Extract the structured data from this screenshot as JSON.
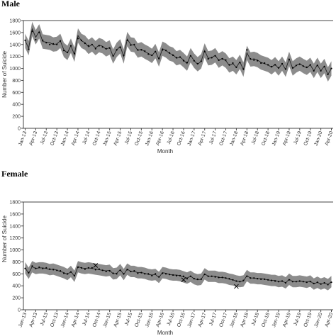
{
  "chart_data": [
    {
      "type": "line",
      "title": "Male",
      "xlabel": "Month",
      "ylabel": "Number of Suicide",
      "ylim": [
        0,
        1800
      ],
      "yticks": [
        0,
        200,
        400,
        600,
        800,
        1000,
        1200,
        1400,
        1600,
        1800
      ],
      "x": [
        "Jan-13",
        "Feb-13",
        "Mar-13",
        "Apr-13",
        "May-13",
        "Jun-13",
        "Jul-13",
        "Aug-13",
        "Sep-13",
        "Oct-13",
        "Nov-13",
        "Dec-13",
        "Jan-14",
        "Feb-14",
        "Mar-14",
        "Apr-14",
        "May-14",
        "Jun-14",
        "Jul-14",
        "Aug-14",
        "Sep-14",
        "Oct-14",
        "Nov-14",
        "Dec-14",
        "Jan-15",
        "Feb-15",
        "Mar-15",
        "Apr-15",
        "May-15",
        "Jun-15",
        "Jul-15",
        "Aug-15",
        "Sep-15",
        "Oct-15",
        "Nov-15",
        "Dec-15",
        "Jan-16",
        "Feb-16",
        "Mar-16",
        "Apr-16",
        "May-16",
        "Jun-16",
        "Jul-16",
        "Aug-16",
        "Sep-16",
        "Oct-16",
        "Nov-16",
        "Dec-16",
        "Jan-17",
        "Feb-17",
        "Mar-17",
        "Apr-17",
        "May-17",
        "Jun-17",
        "Jul-17",
        "Aug-17",
        "Sep-17",
        "Oct-17",
        "Nov-17",
        "Dec-17",
        "Jan-18",
        "Feb-18",
        "Mar-18",
        "Apr-18",
        "May-18",
        "Jun-18",
        "Jul-18",
        "Aug-18",
        "Sep-18",
        "Oct-18",
        "Nov-18",
        "Dec-18",
        "Jan-19",
        "Feb-19",
        "Mar-19",
        "Apr-19",
        "May-19",
        "Jun-19",
        "Jul-19",
        "Aug-19",
        "Sep-19",
        "Oct-19",
        "Nov-19",
        "Dec-19",
        "Jan-20",
        "Feb-20",
        "Mar-20",
        "Apr-20"
      ],
      "xtick_labels": [
        "Jan-13",
        "Apr-13",
        "Jul-13",
        "Oct-13",
        "Jan-14",
        "Apr-14",
        "Jul-14",
        "Oct-14",
        "Jan-15",
        "Apr-15",
        "Jul-15",
        "Oct-15",
        "Jan-16",
        "Apr-16",
        "Jul-16",
        "Oct-16",
        "Jan-17",
        "Apr-17",
        "Jul-17",
        "Oct-17",
        "Jan-18",
        "Apr-18",
        "Jul-18",
        "Oct-18",
        "Jan-19",
        "Apr-19",
        "Jul-19",
        "Oct-19",
        "Jan-20",
        "Apr-20"
      ],
      "band_half_width": 120,
      "fitted": [
        1460,
        1340,
        1660,
        1520,
        1620,
        1450,
        1440,
        1430,
        1400,
        1410,
        1460,
        1310,
        1260,
        1380,
        1230,
        1550,
        1460,
        1430,
        1360,
        1400,
        1340,
        1390,
        1370,
        1320,
        1350,
        1200,
        1310,
        1370,
        1200,
        1490,
        1400,
        1390,
        1300,
        1320,
        1280,
        1250,
        1210,
        1290,
        1150,
        1330,
        1300,
        1250,
        1230,
        1170,
        1190,
        1140,
        1080,
        1220,
        1130,
        1070,
        1120,
        1300,
        1170,
        1180,
        1220,
        1130,
        1170,
        1130,
        1050,
        1080,
        1020,
        1110,
        980,
        1260,
        1150,
        1160,
        1140,
        1100,
        1080,
        1060,
        1020,
        1070,
        1000,
        1080,
        980,
        1160,
        1000,
        1050,
        1080,
        1040,
        1010,
        1060,
        960,
        1060,
        960,
        1040,
        900,
        1000
      ],
      "observed": [
        1470,
        1320,
        1620,
        1480,
        1600,
        1470,
        1430,
        1400,
        1410,
        1400,
        1460,
        1300,
        1270,
        1380,
        1250,
        1500,
        1470,
        1420,
        1380,
        1400,
        1330,
        1380,
        1360,
        1330,
        1340,
        1210,
        1310,
        1350,
        1220,
        1470,
        1390,
        1400,
        1310,
        1310,
        1290,
        1240,
        1220,
        1280,
        1170,
        1310,
        1300,
        1260,
        1220,
        1180,
        1190,
        1130,
        1100,
        1210,
        1130,
        1080,
        1120,
        1280,
        1160,
        1180,
        1210,
        1140,
        1160,
        1140,
        1060,
        1090,
        1020,
        1100,
        990,
        1310,
        1160,
        1140,
        1130,
        1090,
        1090,
        1060,
        1030,
        1060,
        1010,
        1080,
        990,
        1150,
        1010,
        1050,
        1070,
        1040,
        1020,
        1060,
        960,
        1050,
        960,
        1030,
        900,
        1000
      ],
      "line_color": "#222222",
      "band_color": "#8c8c8c"
    },
    {
      "type": "line",
      "title": "Female",
      "xlabel": "Month",
      "ylabel": "Number of Suicide",
      "ylim": [
        0,
        1800
      ],
      "yticks": [
        0,
        200,
        400,
        600,
        800,
        1000,
        1200,
        1400,
        1600,
        1800
      ],
      "x": [
        "Jan-13",
        "Feb-13",
        "Mar-13",
        "Apr-13",
        "May-13",
        "Jun-13",
        "Jul-13",
        "Aug-13",
        "Sep-13",
        "Oct-13",
        "Nov-13",
        "Dec-13",
        "Jan-14",
        "Feb-14",
        "Mar-14",
        "Apr-14",
        "May-14",
        "Jun-14",
        "Jul-14",
        "Aug-14",
        "Sep-14",
        "Oct-14",
        "Nov-14",
        "Dec-14",
        "Jan-15",
        "Feb-15",
        "Mar-15",
        "Apr-15",
        "May-15",
        "Jun-15",
        "Jul-15",
        "Aug-15",
        "Sep-15",
        "Oct-15",
        "Nov-15",
        "Dec-15",
        "Jan-16",
        "Feb-16",
        "Mar-16",
        "Apr-16",
        "May-16",
        "Jun-16",
        "Jul-16",
        "Aug-16",
        "Sep-16",
        "Oct-16",
        "Nov-16",
        "Dec-16",
        "Jan-17",
        "Feb-17",
        "Mar-17",
        "Apr-17",
        "May-17",
        "Jun-17",
        "Jul-17",
        "Aug-17",
        "Sep-17",
        "Oct-17",
        "Nov-17",
        "Dec-17",
        "Jan-18",
        "Feb-18",
        "Mar-18",
        "Apr-18",
        "May-18",
        "Jun-18",
        "Jul-18",
        "Aug-18",
        "Sep-18",
        "Oct-18",
        "Nov-18",
        "Dec-18",
        "Jan-19",
        "Feb-19",
        "Mar-19",
        "Apr-19",
        "May-19",
        "Jun-19",
        "Jul-19",
        "Aug-19",
        "Sep-19",
        "Oct-19",
        "Nov-19",
        "Dec-19",
        "Jan-20",
        "Feb-20",
        "Mar-20",
        "Apr-20"
      ],
      "xtick_labels": [
        "Jan-13",
        "Apr-13",
        "Jul-13",
        "Oct-13",
        "Jan-14",
        "Apr-14",
        "Jul-14",
        "Oct-14",
        "Jan-15",
        "Apr-15",
        "Jul-15",
        "Oct-15",
        "Jan-16",
        "Apr-16",
        "Jul-16",
        "Oct-16",
        "Jan-17",
        "Apr-17",
        "Jul-17",
        "Oct-17",
        "Jan-18",
        "Apr-18",
        "Jul-18",
        "Oct-18",
        "Jan-19",
        "Apr-19",
        "Jul-19",
        "Oct-19",
        "Jan-20",
        "Apr-20"
      ],
      "band_half_width": 95,
      "fitted": [
        700,
        610,
        720,
        690,
        700,
        700,
        690,
        670,
        680,
        660,
        640,
        620,
        590,
        640,
        560,
        720,
        700,
        690,
        700,
        690,
        680,
        670,
        660,
        650,
        660,
        600,
        610,
        670,
        590,
        680,
        640,
        640,
        620,
        620,
        610,
        590,
        580,
        590,
        540,
        620,
        610,
        590,
        580,
        580,
        570,
        550,
        530,
        560,
        520,
        500,
        510,
        600,
        560,
        560,
        560,
        540,
        540,
        530,
        510,
        500,
        480,
        470,
        480,
        570,
        530,
        530,
        520,
        520,
        510,
        500,
        490,
        490,
        470,
        480,
        450,
        510,
        470,
        470,
        480,
        470,
        460,
        480,
        430,
        460,
        430,
        450,
        420,
        470
      ],
      "observed": [
        690,
        620,
        730,
        690,
        710,
        690,
        700,
        680,
        670,
        660,
        650,
        610,
        600,
        630,
        570,
        710,
        700,
        680,
        700,
        700,
        670,
        680,
        660,
        640,
        650,
        610,
        600,
        660,
        600,
        670,
        640,
        650,
        610,
        620,
        600,
        600,
        570,
        600,
        550,
        610,
        600,
        590,
        580,
        570,
        570,
        560,
        520,
        560,
        520,
        510,
        510,
        590,
        560,
        560,
        550,
        540,
        540,
        530,
        520,
        500,
        480,
        470,
        490,
        560,
        530,
        530,
        520,
        510,
        510,
        500,
        490,
        480,
        470,
        480,
        450,
        500,
        470,
        470,
        480,
        470,
        460,
        470,
        440,
        460,
        430,
        450,
        420,
        460
      ],
      "outliers": [
        {
          "x": "Sep-14",
          "y": 740
        },
        {
          "x": "Oct-16",
          "y": 500
        },
        {
          "x": "Jan-18",
          "y": 390
        }
      ],
      "line_color": "#222222",
      "band_color": "#8c8c8c"
    }
  ]
}
